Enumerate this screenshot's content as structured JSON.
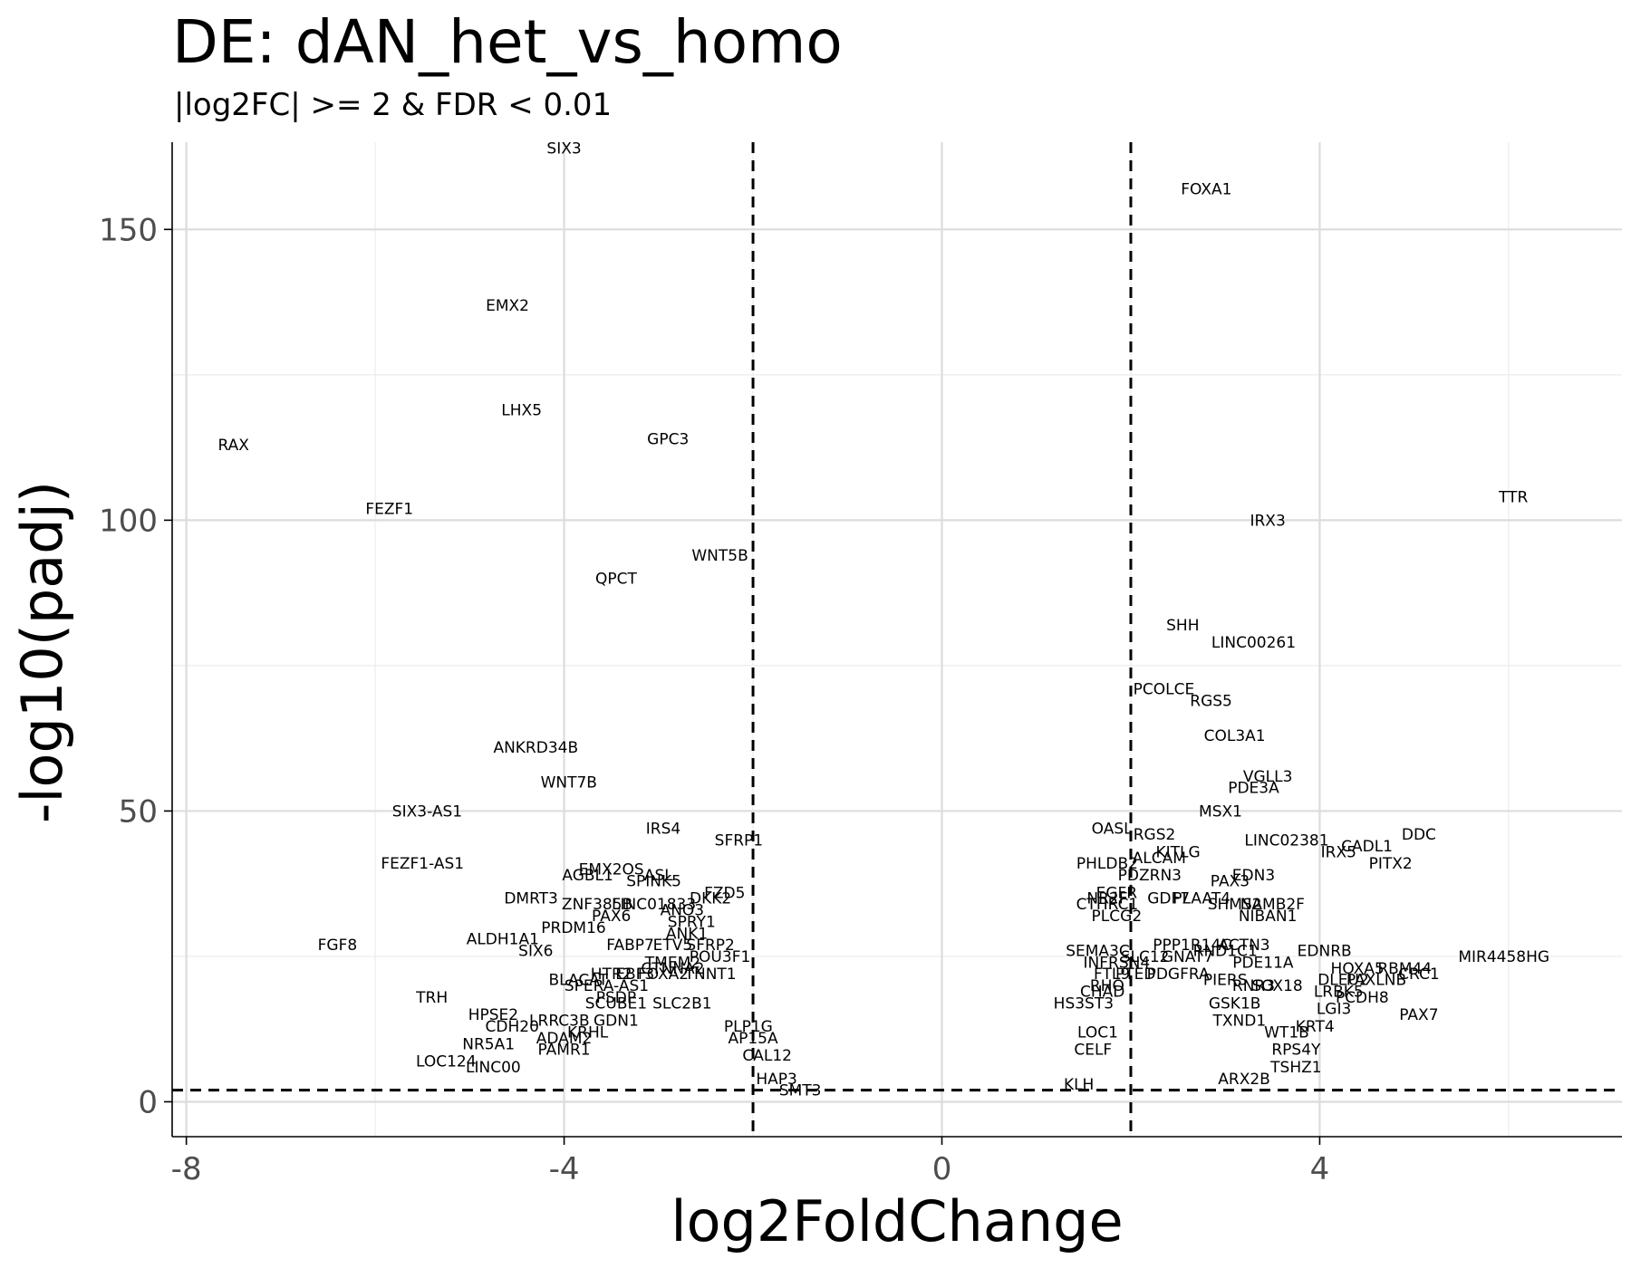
{
  "chart_data": {
    "type": "scatter",
    "title": "DE: dAN_het_vs_homo",
    "subtitle": "|log2FC| >= 2 & FDR < 0.01",
    "xlabel": "log2FoldChange",
    "ylabel": "-log10(padj)",
    "xlim": [
      -8.15,
      7.2
    ],
    "ylim": [
      -6,
      165
    ],
    "x_ticks": [
      -8,
      -4,
      0,
      4
    ],
    "x_tick_labels": [
      "-8",
      "-4",
      "0",
      "4"
    ],
    "y_ticks": [
      0,
      50,
      100,
      150
    ],
    "y_tick_labels": [
      "0",
      "50",
      "100",
      "150"
    ],
    "grid": true,
    "thresholds": {
      "log2fc": [
        -2,
        2
      ],
      "neglog10_padj": 2
    },
    "labels": [
      {
        "gene": "SIX3",
        "x": -4.0,
        "y": 164
      },
      {
        "gene": "FOXA1",
        "x": 2.8,
        "y": 157
      },
      {
        "gene": "EMX2",
        "x": -4.6,
        "y": 137
      },
      {
        "gene": "LHX5",
        "x": -4.45,
        "y": 119
      },
      {
        "gene": "RAX",
        "x": -7.5,
        "y": 113
      },
      {
        "gene": "GPC3",
        "x": -2.9,
        "y": 114
      },
      {
        "gene": "TTR",
        "x": 6.05,
        "y": 104
      },
      {
        "gene": "FEZF1",
        "x": -5.85,
        "y": 102
      },
      {
        "gene": "IRX3",
        "x": 3.45,
        "y": 100
      },
      {
        "gene": "WNT5B",
        "x": -2.35,
        "y": 94
      },
      {
        "gene": "QPCT",
        "x": -3.45,
        "y": 90
      },
      {
        "gene": "SHH",
        "x": 2.55,
        "y": 82
      },
      {
        "gene": "LINC00261",
        "x": 3.3,
        "y": 79
      },
      {
        "gene": "PCOLCE",
        "x": 2.35,
        "y": 71
      },
      {
        "gene": "RGS5",
        "x": 2.85,
        "y": 69
      },
      {
        "gene": "COL3A1",
        "x": 3.1,
        "y": 63
      },
      {
        "gene": "ANKRD34B",
        "x": -4.3,
        "y": 61
      },
      {
        "gene": "VGLL3",
        "x": 3.45,
        "y": 56
      },
      {
        "gene": "PDE3A",
        "x": 3.3,
        "y": 54
      },
      {
        "gene": "WNT7B",
        "x": -3.95,
        "y": 55
      },
      {
        "gene": "SIX3-AS1",
        "x": -5.45,
        "y": 50
      },
      {
        "gene": "MSX1",
        "x": 2.95,
        "y": 50
      },
      {
        "gene": "IRS4",
        "x": -2.95,
        "y": 47
      },
      {
        "gene": "OASL",
        "x": 1.8,
        "y": 47
      },
      {
        "gene": "DDC",
        "x": 5.05,
        "y": 46
      },
      {
        "gene": "SFRP1",
        "x": -2.15,
        "y": 45
      },
      {
        "gene": "RGS2",
        "x": 2.25,
        "y": 46
      },
      {
        "gene": "LINC02381",
        "x": 3.65,
        "y": 45
      },
      {
        "gene": "IRX5",
        "x": 4.2,
        "y": 43
      },
      {
        "gene": "CADL1",
        "x": 4.5,
        "y": 44
      },
      {
        "gene": "KITLG",
        "x": 2.5,
        "y": 43
      },
      {
        "gene": "ALCAM",
        "x": 2.3,
        "y": 42
      },
      {
        "gene": "PITX2",
        "x": 4.75,
        "y": 41
      },
      {
        "gene": "FEZF1-AS1",
        "x": -5.5,
        "y": 41
      },
      {
        "gene": "PHLDB2",
        "x": 1.75,
        "y": 41
      },
      {
        "gene": "EMX2OS",
        "x": -3.5,
        "y": 40
      },
      {
        "gene": "AGBL1",
        "x": -3.75,
        "y": 39
      },
      {
        "gene": "ASL",
        "x": -3.0,
        "y": 39
      },
      {
        "gene": "EDN3",
        "x": 3.3,
        "y": 39
      },
      {
        "gene": "PDZRN3",
        "x": 2.2,
        "y": 39
      },
      {
        "gene": "PAX3",
        "x": 3.05,
        "y": 38
      },
      {
        "gene": "SPINK5",
        "x": -3.05,
        "y": 38
      },
      {
        "gene": "FZD5",
        "x": -2.3,
        "y": 36
      },
      {
        "gene": "DMRT3",
        "x": -4.35,
        "y": 35
      },
      {
        "gene": "DKK2",
        "x": -2.45,
        "y": 35
      },
      {
        "gene": "ZNF385B",
        "x": -3.65,
        "y": 34
      },
      {
        "gene": "LINC01833",
        "x": -3.05,
        "y": 34
      },
      {
        "gene": "NR5A1",
        "x": -4.8,
        "y": 10
      },
      {
        "gene": "ANO3",
        "x": -2.75,
        "y": 33
      },
      {
        "gene": "EGFR",
        "x": 1.85,
        "y": 36
      },
      {
        "gene": "NR2F",
        "x": 1.75,
        "y": 35
      },
      {
        "gene": "GDF7",
        "x": 2.4,
        "y": 35
      },
      {
        "gene": "PLAAT4",
        "x": 2.75,
        "y": 35
      },
      {
        "gene": "SHMS2",
        "x": 3.1,
        "y": 34
      },
      {
        "gene": "NAMB2F",
        "x": 3.5,
        "y": 34
      },
      {
        "gene": "CTHRC1",
        "x": 1.75,
        "y": 34
      },
      {
        "gene": "PAX6",
        "x": -3.5,
        "y": 32
      },
      {
        "gene": "NIBAN1",
        "x": 3.45,
        "y": 32
      },
      {
        "gene": "PLCG2",
        "x": 1.85,
        "y": 32
      },
      {
        "gene": "SPRY1",
        "x": -2.65,
        "y": 31
      },
      {
        "gene": "PRDM16",
        "x": -3.9,
        "y": 30
      },
      {
        "gene": "ANK1",
        "x": -2.7,
        "y": 29
      },
      {
        "gene": "ALDH1A1",
        "x": -4.65,
        "y": 28
      },
      {
        "gene": "FGF8",
        "x": -6.4,
        "y": 27
      },
      {
        "gene": "PPP1R14C",
        "x": 2.65,
        "y": 27
      },
      {
        "gene": "ACTN3",
        "x": 3.2,
        "y": 27
      },
      {
        "gene": "FABP7",
        "x": -3.3,
        "y": 27
      },
      {
        "gene": "ETV5",
        "x": -2.85,
        "y": 27
      },
      {
        "gene": "SFRP2",
        "x": -2.45,
        "y": 27
      },
      {
        "gene": "SIX6",
        "x": -4.3,
        "y": 26
      },
      {
        "gene": "SEMA3C",
        "x": 1.65,
        "y": 26
      },
      {
        "gene": "RND1C1",
        "x": 3.0,
        "y": 26
      },
      {
        "gene": "EDNRB",
        "x": 4.05,
        "y": 26
      },
      {
        "gene": "POU3F1",
        "x": -2.35,
        "y": 25
      },
      {
        "gene": "MIR4458HG",
        "x": 5.95,
        "y": 25
      },
      {
        "gene": "SLC12",
        "x": 2.15,
        "y": 25
      },
      {
        "gene": "GNAT7",
        "x": 2.6,
        "y": 25
      },
      {
        "gene": "PDE11A",
        "x": 3.4,
        "y": 24
      },
      {
        "gene": "TMEM2",
        "x": -2.85,
        "y": 24
      },
      {
        "gene": "INFRSN4",
        "x": 1.85,
        "y": 24
      },
      {
        "gene": "CTNNA2",
        "x": -2.85,
        "y": 23
      },
      {
        "gene": "HOXA5",
        "x": 4.4,
        "y": 23
      },
      {
        "gene": "RBM44",
        "x": 4.9,
        "y": 23
      },
      {
        "gene": "CRC1",
        "x": 5.05,
        "y": 22
      },
      {
        "gene": "TNNT1",
        "x": -2.45,
        "y": 22
      },
      {
        "gene": "HTR2",
        "x": -3.5,
        "y": 22
      },
      {
        "gene": "EBF3",
        "x": -3.25,
        "y": 22
      },
      {
        "gene": "FOXA2",
        "x": -2.95,
        "y": 22
      },
      {
        "gene": "FTL9",
        "x": 1.8,
        "y": 22
      },
      {
        "gene": "PTED",
        "x": 2.05,
        "y": 22
      },
      {
        "gene": "PDGFRA",
        "x": 2.5,
        "y": 22
      },
      {
        "gene": "DLEU2",
        "x": 4.25,
        "y": 21
      },
      {
        "gene": "PAXLNB",
        "x": 4.6,
        "y": 21
      },
      {
        "gene": "BLACAT",
        "x": -3.85,
        "y": 21
      },
      {
        "gene": "PIERS",
        "x": 3.0,
        "y": 21
      },
      {
        "gene": "RNR3",
        "x": 3.3,
        "y": 20
      },
      {
        "gene": "SOX18",
        "x": 3.55,
        "y": 20
      },
      {
        "gene": "SPERA-AS1",
        "x": -3.55,
        "y": 20
      },
      {
        "gene": "RHO",
        "x": 1.75,
        "y": 20
      },
      {
        "gene": "LRBK5",
        "x": 4.2,
        "y": 19
      },
      {
        "gene": "PCDH8",
        "x": 4.45,
        "y": 18
      },
      {
        "gene": "TRH",
        "x": -5.4,
        "y": 18
      },
      {
        "gene": "PSDP",
        "x": -3.45,
        "y": 18
      },
      {
        "gene": "CHAD",
        "x": 1.7,
        "y": 19
      },
      {
        "gene": "SCUBE1",
        "x": -3.45,
        "y": 17
      },
      {
        "gene": "SLC2B1",
        "x": -2.75,
        "y": 17
      },
      {
        "gene": "GSK1B",
        "x": 3.1,
        "y": 17
      },
      {
        "gene": "HS3ST3",
        "x": 1.5,
        "y": 17
      },
      {
        "gene": "LGI3",
        "x": 4.15,
        "y": 16
      },
      {
        "gene": "PAX7",
        "x": 5.05,
        "y": 15
      },
      {
        "gene": "HPSE2",
        "x": -4.75,
        "y": 15
      },
      {
        "gene": "CDH20",
        "x": -4.55,
        "y": 13
      },
      {
        "gene": "LRRC3B",
        "x": -4.05,
        "y": 14
      },
      {
        "gene": "GDN1",
        "x": -3.45,
        "y": 14
      },
      {
        "gene": "TXND1",
        "x": 3.15,
        "y": 14
      },
      {
        "gene": "KRT4",
        "x": 3.95,
        "y": 13
      },
      {
        "gene": "KRHL",
        "x": -3.75,
        "y": 12
      },
      {
        "gene": "PLP1G",
        "x": -2.05,
        "y": 13
      },
      {
        "gene": "WT1B",
        "x": 3.65,
        "y": 12
      },
      {
        "gene": "LOC1",
        "x": 1.65,
        "y": 12
      },
      {
        "gene": "ADAM2",
        "x": -4.0,
        "y": 11
      },
      {
        "gene": "AP15A",
        "x": -2.0,
        "y": 11
      },
      {
        "gene": "PAMR1",
        "x": -4.0,
        "y": 9
      },
      {
        "gene": "LOC124",
        "x": -5.25,
        "y": 7
      },
      {
        "gene": "LINC00",
        "x": -4.75,
        "y": 6
      },
      {
        "gene": "CAL12",
        "x": -1.85,
        "y": 8
      },
      {
        "gene": "RPS4Y",
        "x": 3.75,
        "y": 9
      },
      {
        "gene": "TSHZ1",
        "x": 3.75,
        "y": 6
      },
      {
        "gene": "KLH",
        "x": 1.45,
        "y": 3
      },
      {
        "gene": "ARX2B",
        "x": 3.2,
        "y": 4
      },
      {
        "gene": "HAP3",
        "x": -1.75,
        "y": 4
      },
      {
        "gene": "SMT3",
        "x": -1.5,
        "y": 2
      },
      {
        "gene": "CELF",
        "x": 1.6,
        "y": 9
      }
    ]
  }
}
